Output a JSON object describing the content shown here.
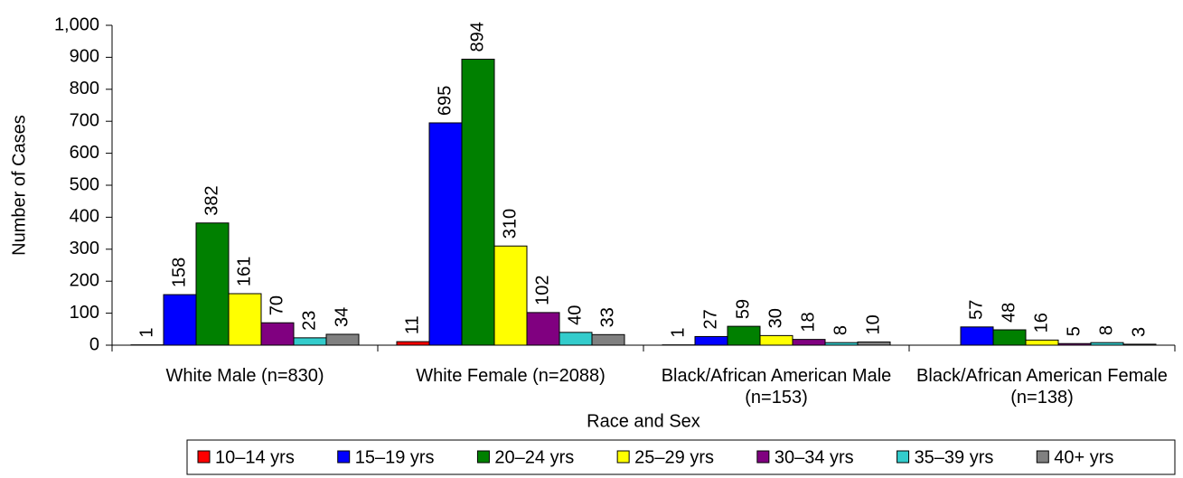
{
  "chart_data": {
    "type": "bar",
    "x_label": "Race and Sex",
    "y_label": "Number of Cases",
    "categories": [
      "White Male (n=830)",
      "White Female (n=2088)",
      "Black/African American Male (n=153)",
      "Black/African American Female (n=138)"
    ],
    "series": [
      {
        "name": "10–14 yrs",
        "color": "#ff0000",
        "values": [
          1,
          11,
          1,
          null
        ]
      },
      {
        "name": "15–19 yrs",
        "color": "#0000ff",
        "values": [
          158,
          695,
          27,
          57
        ]
      },
      {
        "name": "20–24 yrs",
        "color": "#008000",
        "values": [
          382,
          894,
          59,
          48
        ]
      },
      {
        "name": "25–29 yrs",
        "color": "#ffff00",
        "values": [
          161,
          310,
          30,
          16
        ]
      },
      {
        "name": "30–34 yrs",
        "color": "#800080",
        "values": [
          70,
          102,
          18,
          5
        ]
      },
      {
        "name": "35–39 yrs",
        "color": "#33cccc",
        "values": [
          23,
          40,
          8,
          8
        ]
      },
      {
        "name": "40+ yrs",
        "color": "#808080",
        "values": [
          34,
          33,
          10,
          3
        ]
      }
    ],
    "ylim": [
      0,
      1000
    ],
    "yticks": [
      0,
      100,
      200,
      300,
      400,
      500,
      600,
      700,
      800,
      900,
      {
        "value": 1000,
        "label": "1,000"
      }
    ],
    "legend": "bottom"
  }
}
